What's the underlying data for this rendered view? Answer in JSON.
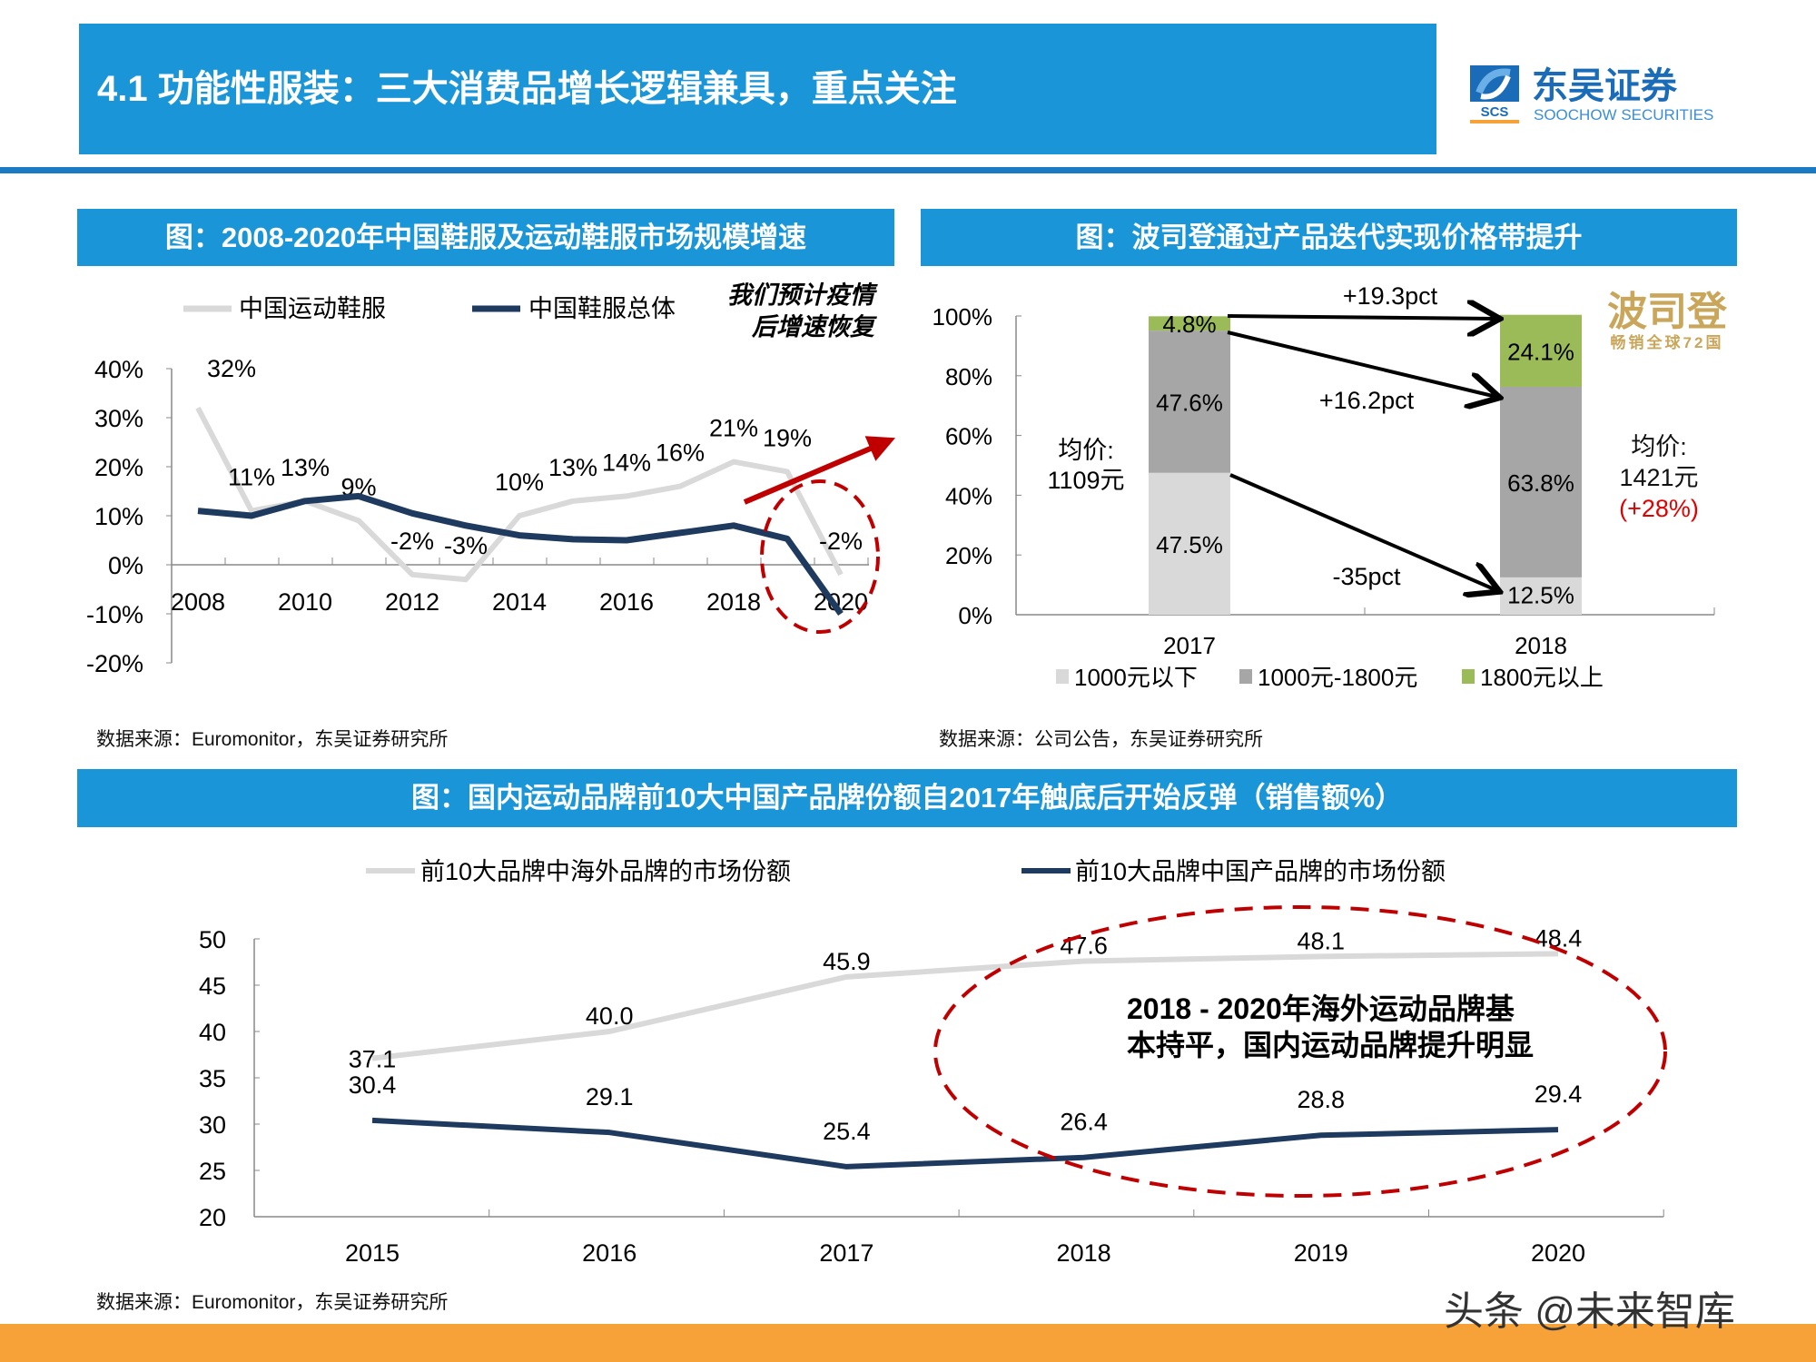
{
  "header": {
    "title": "4.1 功能性服装：三大消费品增长逻辑兼具，重点关注",
    "logo_cn": "东吴证券",
    "logo_en": "SOOCHOW SECURITIES",
    "logo_mark": "SCS"
  },
  "sections": {
    "left_title": "图：2008-2020年中国鞋服及运动鞋服市场规模增速",
    "right_title": "图：波司登通过产品迭代实现价格带提升",
    "bottom_title": "图：国内运动品牌前10大中国产品牌份额自2017年触底后开始反弹（销售额%）",
    "left_source": "数据来源：Euromonitor，东吴证券研究所",
    "right_source": "数据来源：公司公告，东吴证券研究所",
    "bottom_source": "数据来源：Euromonitor，东吴证券研究所"
  },
  "watermark": "头条 @未来智库",
  "colors": {
    "header_blue": "#1a96d8",
    "navy": "#1f3a5f",
    "light_gray": "#d9d9d9",
    "mid_gray": "#a6a6a6",
    "green": "#9bbb59",
    "red": "#c00000",
    "gold": "#c9a65a",
    "orange": "#f7a238"
  },
  "chart_data": [
    {
      "type": "line",
      "x": [
        2008,
        2009,
        2010,
        2011,
        2012,
        2013,
        2014,
        2015,
        2016,
        2017,
        2018,
        2019,
        2020
      ],
      "xticks": [
        "2008",
        "2010",
        "2012",
        "2014",
        "2016",
        "2018",
        "2020"
      ],
      "yticks": [
        "40%",
        "30%",
        "20%",
        "10%",
        "0%",
        "-10%",
        "-20%"
      ],
      "ylim": [
        -20,
        40
      ],
      "legend_position": "top",
      "series": [
        {
          "name": "中国运动鞋服",
          "color": "#d9d9d9",
          "values": [
            32,
            11,
            13,
            9,
            -2,
            -3,
            10,
            13,
            14,
            16,
            21,
            19,
            -2
          ],
          "labels": [
            "32%",
            "11%",
            "13%",
            "9%",
            "-2%",
            "-3%",
            "10%",
            "13%",
            "14%",
            "16%",
            "21%",
            "19%",
            "-2%"
          ]
        },
        {
          "name": "中国鞋服总体",
          "color": "#1f3a5f",
          "values": [
            11,
            10,
            13,
            14,
            10.5,
            8,
            6,
            5.2,
            5,
            6.5,
            8,
            5.3,
            -10
          ]
        }
      ],
      "annotation": [
        "我们预计疫情",
        "后增速恢复"
      ]
    },
    {
      "type": "bar",
      "stacked": true,
      "categories": [
        "2017",
        "2018"
      ],
      "yticks": [
        "100%",
        "80%",
        "60%",
        "40%",
        "20%",
        "0%"
      ],
      "ylim": [
        0,
        100
      ],
      "legend_position": "bottom",
      "series": [
        {
          "name": "1000元以下",
          "color": "#d9d9d9",
          "values": [
            47.5,
            12.5
          ],
          "labels": [
            "47.5%",
            "12.5%"
          ]
        },
        {
          "name": "1000元-1800元",
          "color": "#a6a6a6",
          "values": [
            47.6,
            63.8
          ],
          "labels": [
            "47.6%",
            "63.8%"
          ]
        },
        {
          "name": "1800元以上",
          "color": "#9bbb59",
          "values": [
            4.8,
            24.1
          ],
          "labels": [
            "4.8%",
            "24.1%"
          ]
        }
      ],
      "arrows": [
        "+19.3pct",
        "+16.2pct",
        "-35pct"
      ],
      "avg_price_left": [
        "均价:",
        "1109元"
      ],
      "avg_price_right": [
        "均价:",
        "1421元",
        "(+28%)"
      ],
      "brand_logo": {
        "name": "波司登",
        "slogan": "畅销全球72国"
      }
    },
    {
      "type": "line",
      "x": [
        "2015",
        "2016",
        "2017",
        "2018",
        "2019",
        "2020"
      ],
      "yticks": [
        "50",
        "45",
        "40",
        "35",
        "30",
        "25",
        "20"
      ],
      "ylim": [
        20,
        50
      ],
      "legend_position": "top",
      "series": [
        {
          "name": "前10大品牌中海外品牌的市场份额",
          "color": "#d9d9d9",
          "values": [
            37.1,
            40.0,
            45.9,
            47.6,
            48.1,
            48.4
          ],
          "labels": [
            "37.1",
            "40.0",
            "45.9",
            "47.6",
            "48.1",
            "48.4"
          ]
        },
        {
          "name": "前10大品牌中国产品牌的市场份额",
          "color": "#1f3a5f",
          "values": [
            30.4,
            29.1,
            25.4,
            26.4,
            28.8,
            29.4
          ],
          "labels": [
            "30.4",
            "29.1",
            "25.4",
            "26.4",
            "28.8",
            "29.4"
          ]
        }
      ],
      "annotation": [
        "2018 - 2020年海外运动品牌基",
        "本持平，国内运动品牌提升明显"
      ]
    }
  ]
}
